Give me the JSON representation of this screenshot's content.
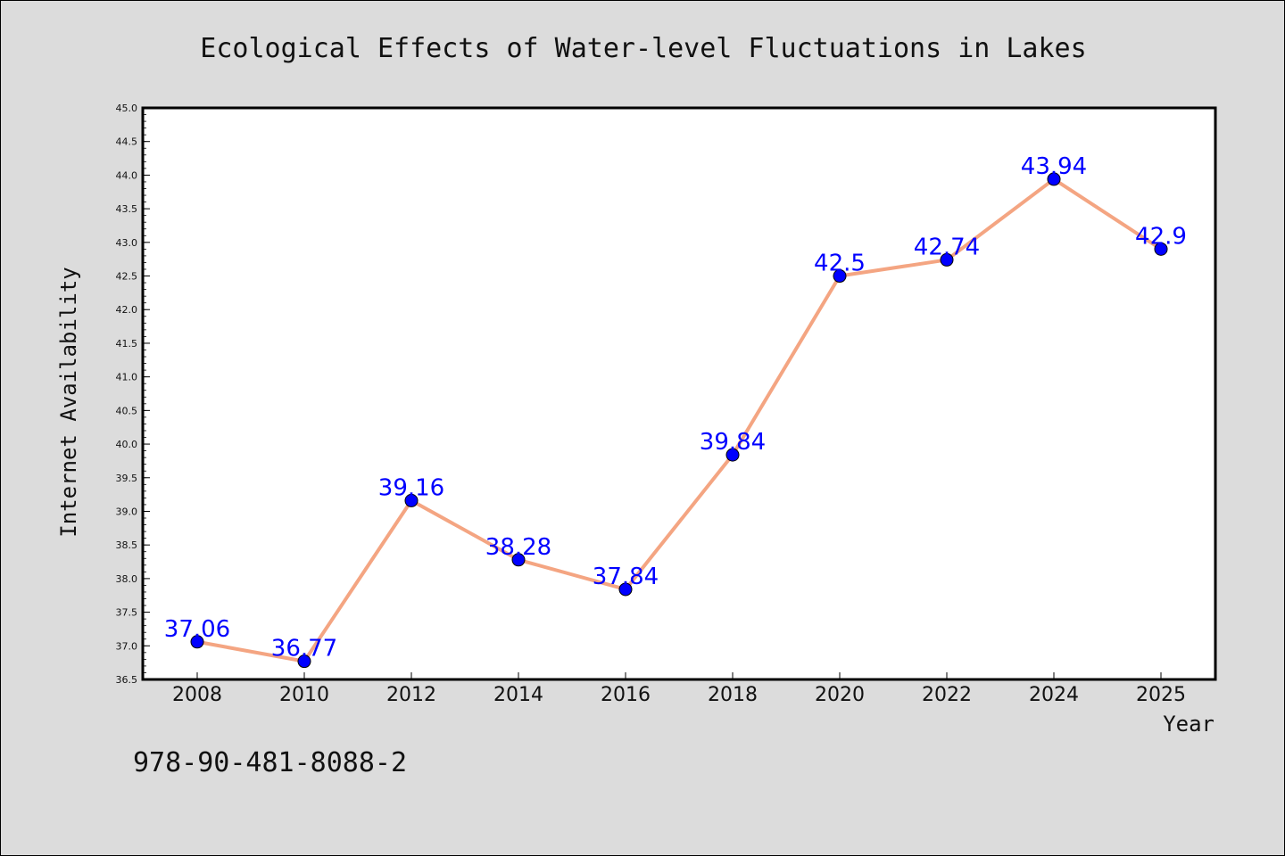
{
  "chart_data": {
    "type": "line",
    "title": "Ecological Effects of Water-level Fluctuations in Lakes",
    "xlabel": "Year",
    "ylabel": "Internet Availability",
    "x": [
      "2008",
      "2010",
      "2012",
      "2014",
      "2016",
      "2018",
      "2020",
      "2022",
      "2024",
      "2025"
    ],
    "series": [
      {
        "values": [
          37.06,
          36.77,
          39.16,
          38.28,
          37.84,
          39.84,
          42.5,
          42.74,
          43.94,
          42.9
        ],
        "labels": [
          "37.06",
          "36.77",
          "39.16",
          "38.28",
          "37.84",
          "39.84",
          "42.5",
          "42.74",
          "43.94",
          "42.9"
        ],
        "line_color": "#f4a582",
        "marker_color": "#0000ff"
      }
    ],
    "ylim": [
      36.5,
      45.0
    ],
    "yticks": [
      "36.5",
      "37.0",
      "37.5",
      "38.0",
      "38.5",
      "39.0",
      "39.5",
      "40.0",
      "40.5",
      "41.0",
      "41.5",
      "42.0",
      "42.5",
      "43.0",
      "43.5",
      "44.0",
      "44.5",
      "45.0"
    ],
    "grid": false,
    "legend": "none",
    "label_color": "#0000ff",
    "background_color": "#dcdcdc",
    "plot_background": "#ffffff"
  },
  "footer": {
    "isbn": "978-90-481-8088-2"
  }
}
